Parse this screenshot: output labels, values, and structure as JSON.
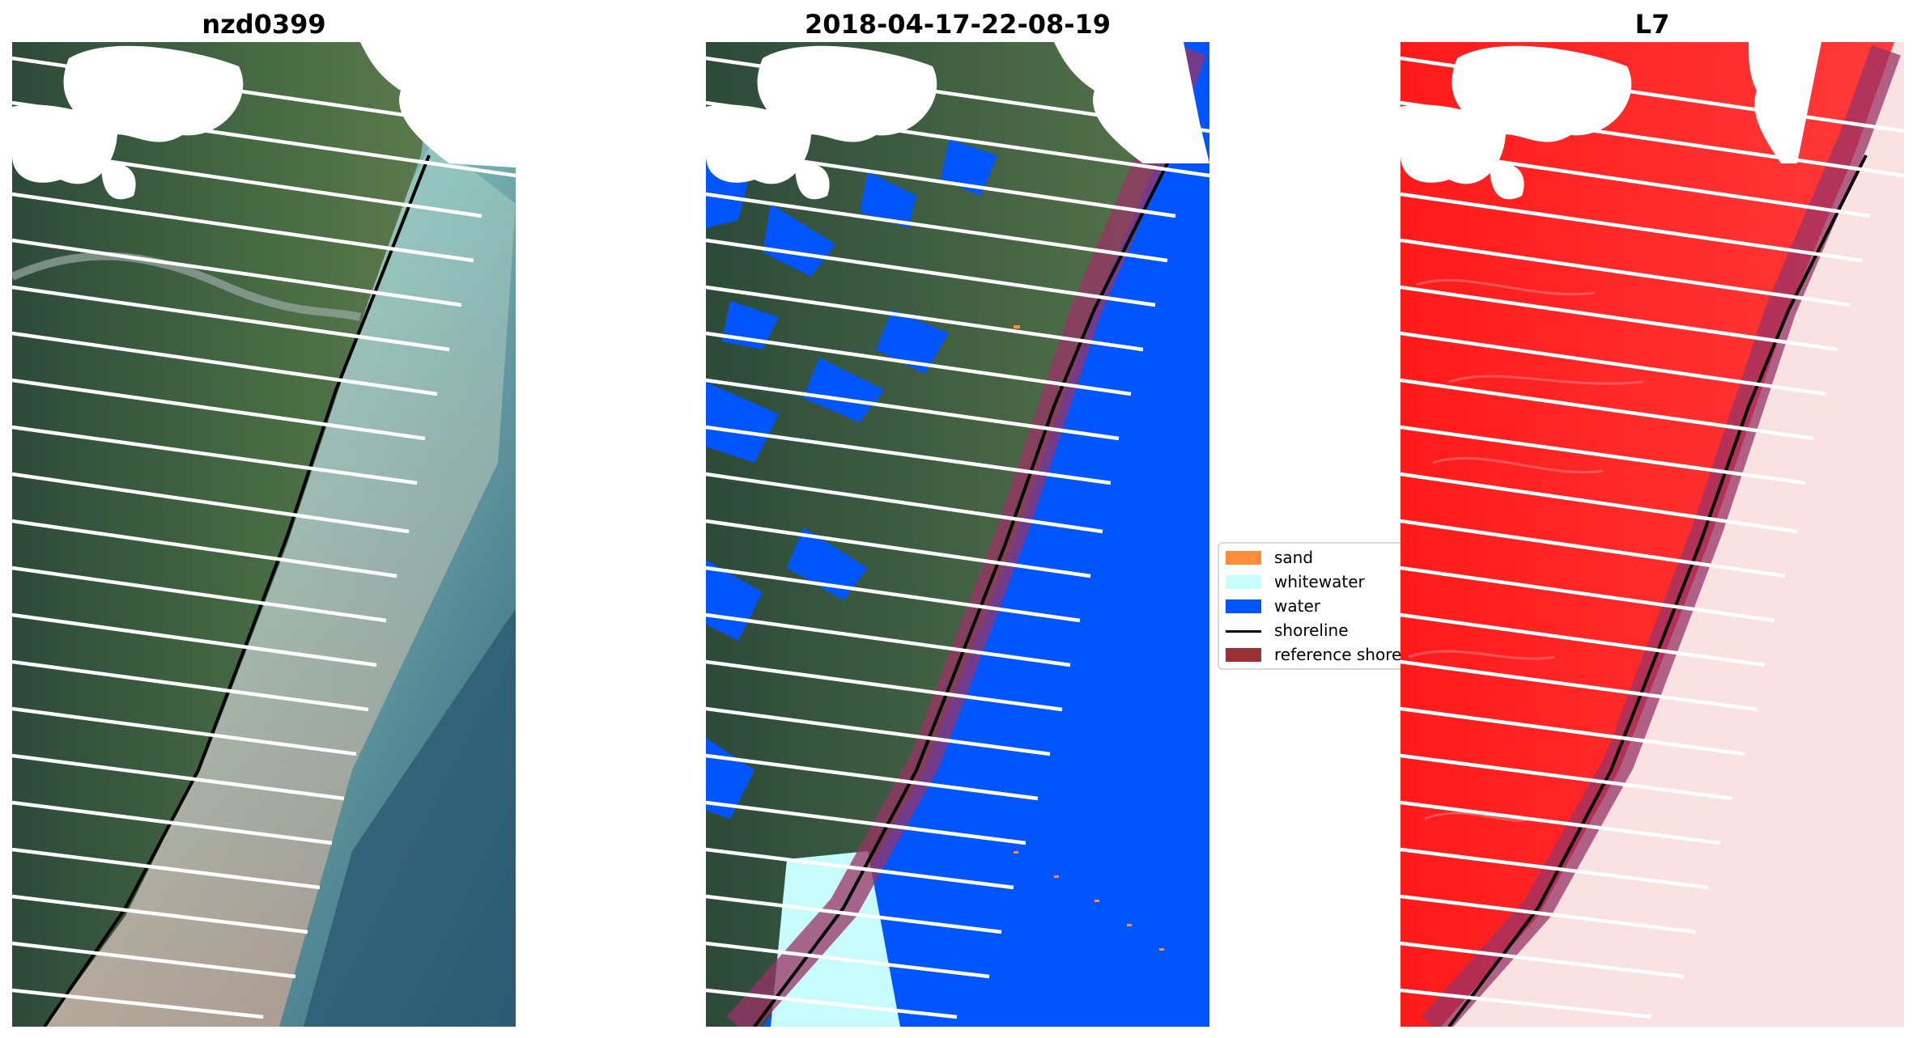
{
  "panels": [
    {
      "title": "nzd0399"
    },
    {
      "title": "2018-04-17-22-08-19"
    },
    {
      "title": "L7"
    }
  ],
  "legend": {
    "items": [
      {
        "label": "sand",
        "color": "#ff8c3a"
      },
      {
        "label": "whitewater",
        "color": "#c8fcfc"
      },
      {
        "label": "water",
        "color": "#0055ff"
      },
      {
        "label": "shoreline",
        "color": "#000000"
      },
      {
        "label": "reference shoreline",
        "color": "#993333"
      }
    ]
  },
  "colors": {
    "land_rgb": "#3f5a3c",
    "sea_rgb": "#6faeb0",
    "land_ndwi": "#ff1a1a",
    "sea_ndwi": "#fbe2e2",
    "scan_gaps": "#ffffff",
    "clouds": "#ffffff"
  }
}
